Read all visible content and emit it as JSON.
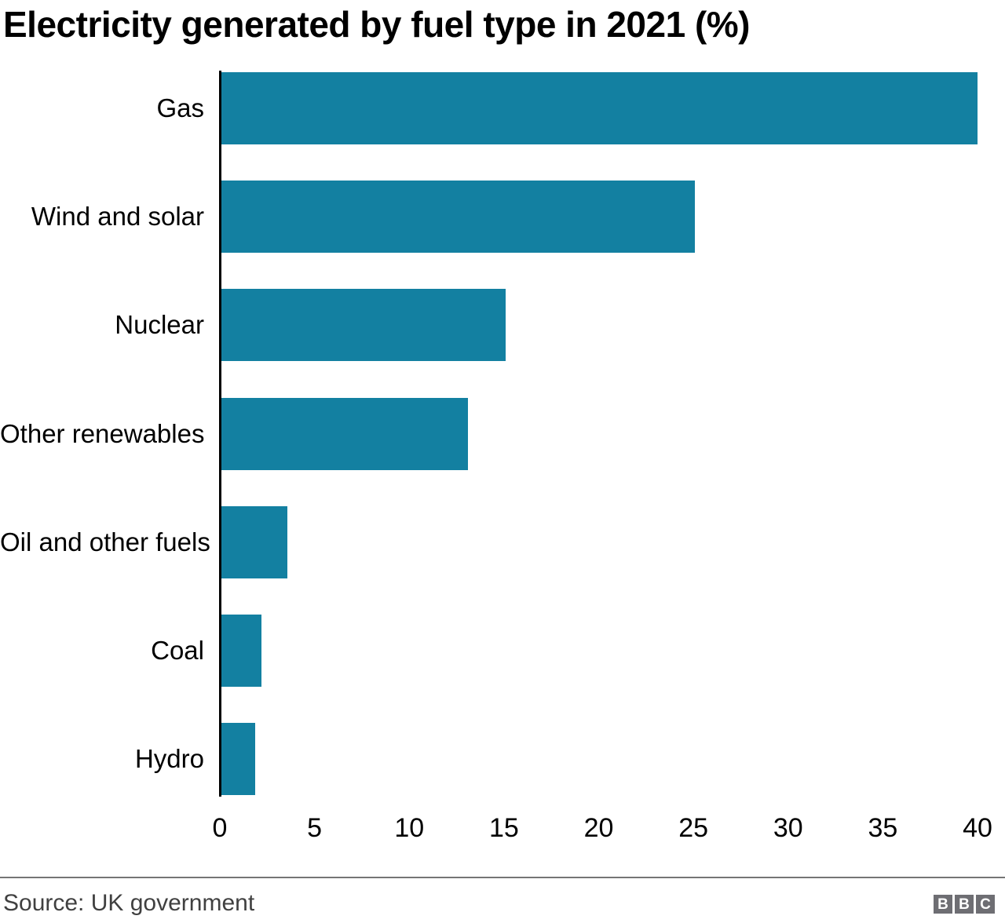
{
  "title": "Electricity generated by fuel type in 2021 (%)",
  "footer": {
    "source": "Source: UK government",
    "logo_letters": [
      "B",
      "B",
      "C"
    ]
  },
  "colors": {
    "bar": "#1380A1",
    "axis": "#000000",
    "divider": "#757575",
    "source_text": "#404040",
    "logo_bg": "#6E6E73",
    "title_text": "#000000"
  },
  "chart_data": {
    "type": "bar",
    "orientation": "horizontal",
    "title": "Electricity generated by fuel type in 2021 (%)",
    "categories": [
      "Gas",
      "Wind and solar",
      "Nuclear",
      "Other renewables",
      "Oil and other fuels",
      "Coal",
      "Hydro"
    ],
    "values": [
      39.9,
      25,
      15,
      13,
      3.5,
      2.1,
      1.8
    ],
    "unit": "%",
    "xlabel": "",
    "ylabel": "",
    "xlim": [
      0,
      40
    ],
    "x_ticks": [
      0,
      5,
      10,
      15,
      20,
      25,
      30,
      35,
      40
    ],
    "grid": false,
    "legend": false
  }
}
